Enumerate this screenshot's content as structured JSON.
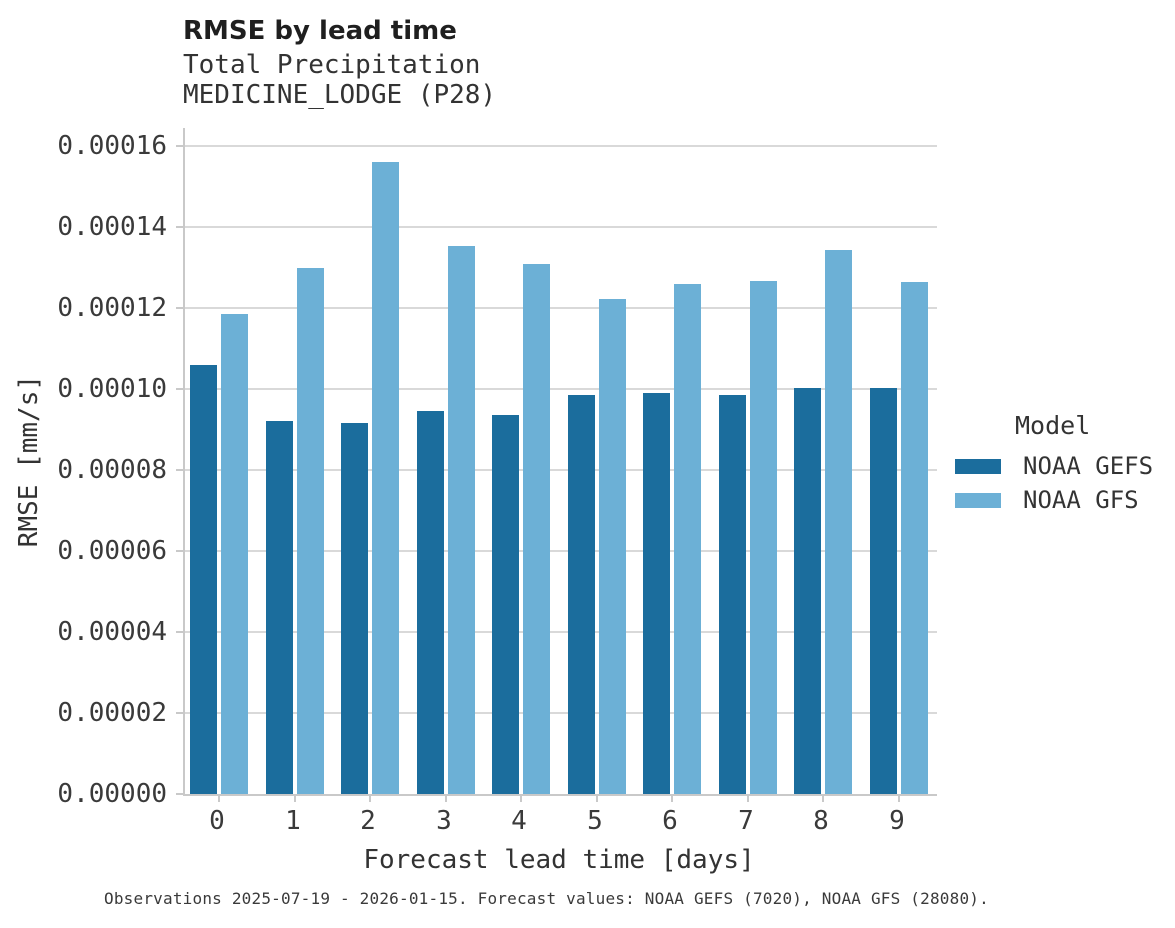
{
  "header": {
    "title": "RMSE by lead time",
    "subtitle_line1": "Total Precipitation",
    "subtitle_line2": "MEDICINE_LODGE (P28)"
  },
  "caption": "Observations 2025-07-19 - 2026-01-15. Forecast values: NOAA GEFS (7020), NOAA GFS (28080).",
  "legend": {
    "title": "Model",
    "entries": [
      {
        "label": "NOAA GEFS",
        "color": "#1b6d9d"
      },
      {
        "label": "NOAA GFS",
        "color": "#6cb0d6"
      }
    ]
  },
  "colors": {
    "gefs_bar": "#1b6d9d",
    "gfs_bar": "#6cb0d6",
    "gridline": "#d9d9d9",
    "axis_line": "#c9c9c9",
    "title_text": "#1f1f1f",
    "body_text": "#333333"
  },
  "chart_data": {
    "type": "bar",
    "title": "RMSE by lead time",
    "subtitle": "Total Precipitation MEDICINE_LODGE (P28)",
    "xlabel": "Forecast lead time [days]",
    "ylabel": "RMSE [mm/s]",
    "grid": true,
    "legend_position": "right",
    "legend_title": "Model",
    "categories": [
      "0",
      "1",
      "2",
      "3",
      "4",
      "5",
      "6",
      "7",
      "8",
      "9"
    ],
    "series": [
      {
        "name": "NOAA GEFS",
        "color": "#1b6d9d",
        "values": [
          0.000106,
          9.22e-05,
          9.15e-05,
          9.45e-05,
          9.37e-05,
          9.84e-05,
          9.9e-05,
          9.84e-05,
          0.0001003,
          0.0001003
        ]
      },
      {
        "name": "NOAA GFS",
        "color": "#6cb0d6",
        "values": [
          0.0001185,
          0.00013,
          0.000156,
          0.0001352,
          0.0001308,
          0.0001223,
          0.000126,
          0.0001267,
          0.0001343,
          0.0001265
        ]
      }
    ],
    "ylim": [
      0,
      0.00016
    ],
    "y_tick_values": [
      0,
      2e-05,
      4e-05,
      6e-05,
      8e-05,
      0.0001,
      0.00012,
      0.00014,
      0.00016
    ],
    "y_tick_labels": [
      "0.00000",
      "0.00002",
      "0.00004",
      "0.00006",
      "0.00008",
      "0.00010",
      "0.00012",
      "0.00014",
      "0.00016"
    ]
  }
}
